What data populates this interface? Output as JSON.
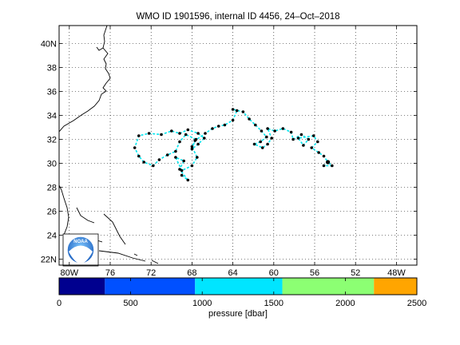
{
  "title": "WMO ID 1901596, internal ID 4456, 24–Oct–2018",
  "map": {
    "lon_range": [
      -81,
      -46
    ],
    "lat_range": [
      21.5,
      41.5
    ],
    "lat_ticks": [
      {
        "value": 22,
        "label": "22N"
      },
      {
        "value": 24,
        "label": "24"
      },
      {
        "value": 26,
        "label": "26"
      },
      {
        "value": 28,
        "label": "28"
      },
      {
        "value": 30,
        "label": "30"
      },
      {
        "value": 32,
        "label": "32"
      },
      {
        "value": 34,
        "label": "34"
      },
      {
        "value": 36,
        "label": "36"
      },
      {
        "value": 38,
        "label": "38"
      },
      {
        "value": 40,
        "label": "40N"
      }
    ],
    "lon_ticks": [
      {
        "value": -80,
        "label": "80W"
      },
      {
        "value": -76,
        "label": "76"
      },
      {
        "value": -72,
        "label": "72"
      },
      {
        "value": -68,
        "label": "68"
      },
      {
        "value": -64,
        "label": "64"
      },
      {
        "value": -60,
        "label": "60"
      },
      {
        "value": -56,
        "label": "56"
      },
      {
        "value": -52,
        "label": "52"
      },
      {
        "value": -48,
        "label": "48W"
      }
    ],
    "grid": true,
    "track_color": "#00e5ee",
    "point_color": "#000000",
    "track": [
      [
        -69.0,
        29.0
      ],
      [
        -68.4,
        28.6
      ],
      [
        -69.2,
        29.5
      ],
      [
        -68.8,
        30.2
      ],
      [
        -69.6,
        30.5
      ],
      [
        -69.0,
        29.4
      ],
      [
        -68.0,
        29.8
      ],
      [
        -67.5,
        30.5
      ],
      [
        -68.0,
        31.4
      ],
      [
        -67.6,
        32.0
      ],
      [
        -68.6,
        32.4
      ],
      [
        -69.2,
        31.8
      ],
      [
        -69.6,
        31.0
      ],
      [
        -70.4,
        30.7
      ],
      [
        -71.2,
        30.3
      ],
      [
        -71.8,
        29.8
      ],
      [
        -72.7,
        30.1
      ],
      [
        -73.2,
        30.6
      ],
      [
        -73.6,
        31.3
      ],
      [
        -73.2,
        32.3
      ],
      [
        -72.2,
        32.5
      ],
      [
        -71.0,
        32.4
      ],
      [
        -70.0,
        32.7
      ],
      [
        -69.2,
        32.5
      ],
      [
        -68.4,
        32.8
      ],
      [
        -67.4,
        32.5
      ],
      [
        -66.8,
        32.1
      ],
      [
        -67.4,
        31.6
      ],
      [
        -68.0,
        31.2
      ],
      [
        -67.7,
        31.9
      ],
      [
        -66.7,
        32.5
      ],
      [
        -66.0,
        32.9
      ],
      [
        -65.4,
        33.1
      ],
      [
        -64.8,
        33.2
      ],
      [
        -64.0,
        33.6
      ],
      [
        -63.6,
        34.4
      ],
      [
        -64.0,
        34.5
      ],
      [
        -63.0,
        34.3
      ],
      [
        -62.4,
        33.7
      ],
      [
        -61.8,
        33.2
      ],
      [
        -61.2,
        32.7
      ],
      [
        -60.7,
        32.2
      ],
      [
        -61.3,
        31.8
      ],
      [
        -61.9,
        31.6
      ],
      [
        -61.1,
        31.3
      ],
      [
        -60.6,
        31.6
      ],
      [
        -60.2,
        32.1
      ],
      [
        -60.6,
        32.9
      ],
      [
        -59.9,
        32.7
      ],
      [
        -59.1,
        32.9
      ],
      [
        -58.3,
        32.6
      ],
      [
        -58.1,
        32.0
      ],
      [
        -57.3,
        32.4
      ],
      [
        -56.6,
        32.0
      ],
      [
        -57.1,
        31.5
      ],
      [
        -57.6,
        32.1
      ],
      [
        -56.1,
        32.3
      ],
      [
        -55.7,
        31.8
      ],
      [
        -56.3,
        31.3
      ],
      [
        -55.6,
        30.9
      ],
      [
        -55.1,
        30.6
      ],
      [
        -54.7,
        30.1
      ],
      [
        -55.1,
        29.8
      ],
      [
        -54.3,
        29.8
      ],
      [
        -54.7,
        30.1
      ]
    ]
  },
  "colorbar": {
    "label": "pressure [dbar]",
    "min": 0,
    "max": 2500,
    "ticks": [
      "0",
      "500",
      "1000",
      "1500",
      "2000",
      "2500"
    ],
    "bands": [
      {
        "from": 0,
        "to": 320,
        "color": "#00008f"
      },
      {
        "from": 320,
        "to": 950,
        "color": "#0050ff"
      },
      {
        "from": 950,
        "to": 1560,
        "color": "#00e5ff"
      },
      {
        "from": 1560,
        "to": 2200,
        "color": "#8cff73"
      },
      {
        "from": 2200,
        "to": 2500,
        "color": "#ffa500"
      }
    ]
  },
  "logo_text": "NOAA"
}
